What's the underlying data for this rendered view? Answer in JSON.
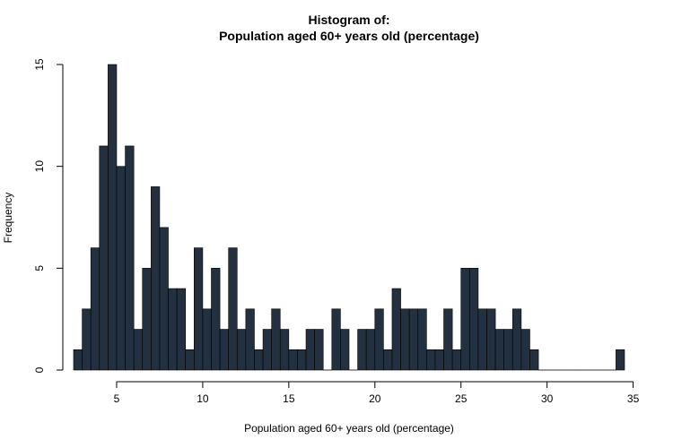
{
  "chart_data": {
    "type": "bar",
    "title_line1": "Histogram of:",
    "title_line2": "Population aged 60+ years old (percentage)",
    "xlabel": "Population aged 60+ years old (percentage)",
    "ylabel": "Frequency",
    "bar_color": "#22303f",
    "xlim": [
      2.5,
      34.5
    ],
    "ylim": [
      0,
      15
    ],
    "xticks": [
      5,
      10,
      15,
      20,
      25,
      30,
      35
    ],
    "yticks": [
      0,
      5,
      10,
      15
    ],
    "bin_start": 2.5,
    "bin_width": 0.5,
    "values": [
      1,
      3,
      6,
      11,
      15,
      10,
      11,
      2,
      5,
      9,
      7,
      4,
      4,
      1,
      6,
      3,
      5,
      2,
      6,
      2,
      3,
      1,
      2,
      3,
      2,
      1,
      1,
      2,
      2,
      0,
      3,
      2,
      0,
      2,
      2,
      3,
      1,
      4,
      3,
      3,
      3,
      1,
      1,
      3,
      1,
      5,
      5,
      3,
      3,
      2,
      2,
      3,
      2,
      1,
      0,
      0,
      0,
      0,
      0,
      0,
      0,
      0,
      0,
      1
    ]
  }
}
